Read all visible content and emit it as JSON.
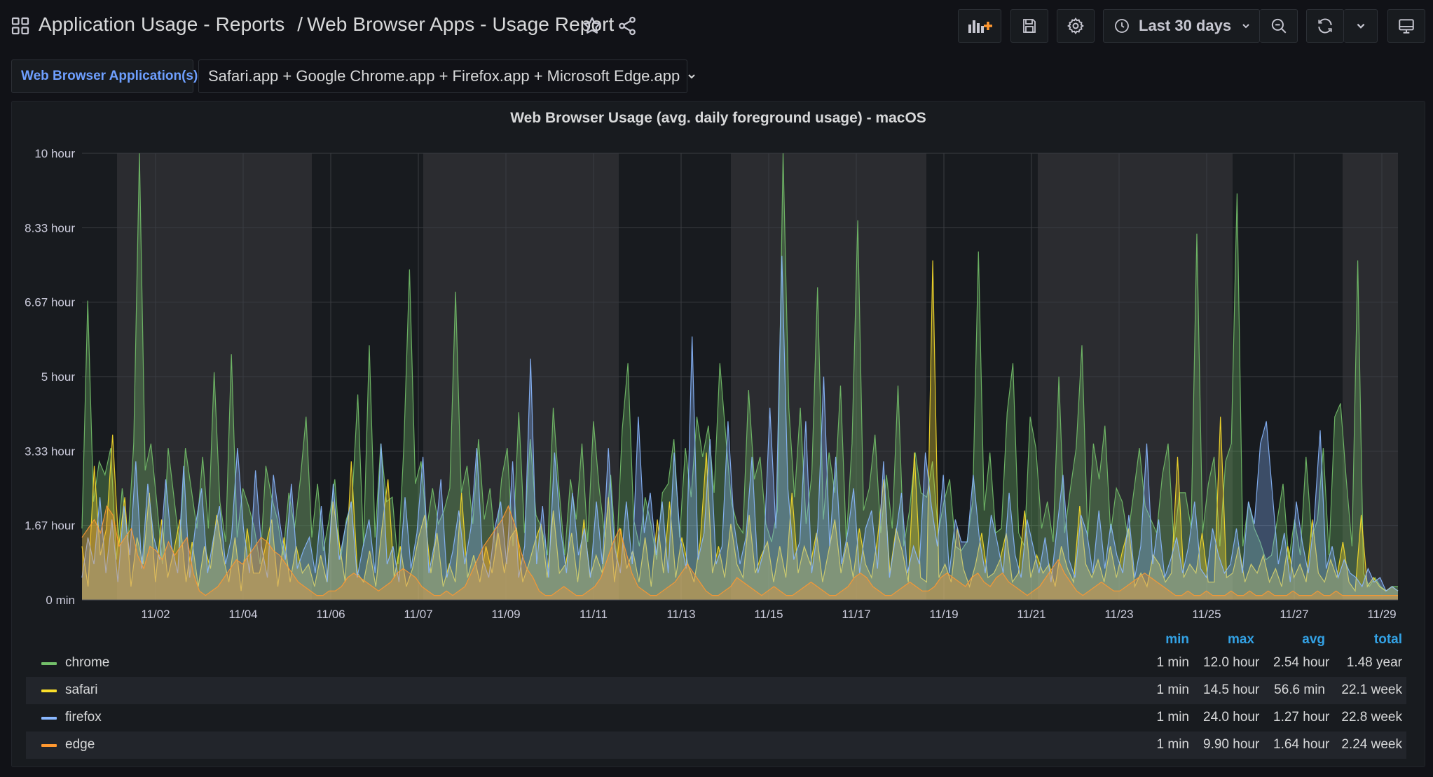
{
  "header": {
    "breadcrumb_folder": "Application Usage - Reports",
    "breadcrumb_separator": "/",
    "breadcrumb_dashboard": "Web Browser Apps - Usage Report",
    "time_range": "Last 30 days",
    "icons": [
      "apps-icon",
      "star-icon",
      "share-icon",
      "add-panel-icon",
      "save-icon",
      "settings-icon",
      "clock-icon",
      "chevron-down-icon",
      "zoom-out-icon",
      "refresh-icon",
      "chevron-down-icon",
      "tv-mode-icon"
    ]
  },
  "variables": {
    "label": "Web Browser Application(s):",
    "value": "Safari.app + Google Chrome.app + Firefox.app + Microsoft Edge.app"
  },
  "colors": {
    "chrome": "#73bf69",
    "safari": "#fade2a",
    "firefox": "#8ab8ff",
    "edge": "#ff9830",
    "accent": "#33a2e5",
    "background": "#111217",
    "panel": "#181b1f"
  },
  "chart_data": {
    "type": "area",
    "title": "Web Browser Usage (avg. daily foreground usage) - macOS",
    "y_unit": "hour",
    "ylim": [
      0,
      10
    ],
    "y_ticks": [
      "0 min",
      "1.67 hour",
      "3.33 hour",
      "5 hour",
      "6.67 hour",
      "8.33 hour",
      "10 hour"
    ],
    "x_ticks": [
      "11/02",
      "11/04",
      "11/06",
      "11/07",
      "11/09",
      "11/11",
      "11/13",
      "11/15",
      "11/17",
      "11/19",
      "11/21",
      "11/23",
      "11/25",
      "11/27",
      "11/29"
    ],
    "grid": true,
    "legend_placement": "bottom",
    "series": [
      {
        "name": "chrome",
        "color": "#73bf69",
        "values": [
          1.6,
          6.7,
          2.2,
          3.1,
          2.8,
          3.4,
          0.9,
          2.5,
          1.3,
          3.5,
          10.0,
          2.9,
          3.5,
          2.2,
          0.8,
          3.4,
          2.3,
          1.2,
          3.4,
          2.5,
          1.6,
          3.2,
          1.6,
          5.1,
          2.2,
          1.3,
          5.5,
          1.4,
          2.5,
          2.1,
          1.6,
          0.8,
          3.0,
          2.3,
          1.8,
          1.0,
          2.4,
          1.6,
          2.7,
          4.1,
          1.4,
          2.6,
          1.1,
          1.8,
          2.7,
          0.9,
          1.8,
          2.2,
          4.6,
          1.2,
          5.7,
          1.4,
          3.5,
          2.2,
          2.3,
          0.8,
          3.4,
          7.4,
          2.6,
          3.1,
          1.6,
          2.5,
          1.7,
          2.0,
          2.5,
          6.9,
          2.4,
          3.0,
          1.7,
          3.6,
          1.8,
          2.5,
          1.1,
          2.7,
          3.4,
          1.2,
          4.2,
          1.5,
          3.6,
          1.9,
          1.6,
          1.0,
          4.3,
          2.5,
          1.0,
          2.7,
          1.8,
          3.5,
          1.3,
          4.0,
          2.5,
          1.4,
          2.8,
          0.9,
          3.8,
          5.3,
          1.8,
          1.2,
          2.3,
          1.7,
          0.9,
          2.4,
          2.6,
          3.6,
          1.4,
          3.4,
          2.3,
          4.1,
          3.2,
          3.9,
          2.4,
          5.3,
          3.7,
          2.2,
          1.7,
          1.5,
          4.7,
          2.7,
          3.2,
          1.7,
          1.3,
          2.0,
          10.0,
          4.3,
          2.3,
          4.3,
          1.7,
          2.8,
          7.0,
          1.8,
          3.3,
          2.4,
          4.8,
          1.3,
          3.5,
          8.5,
          2.0,
          2.5,
          3.7,
          1.5,
          2.8,
          1.6,
          4.8,
          1.2,
          2.0,
          3.3,
          2.4,
          2.3,
          3.1,
          1.5,
          2.2,
          2.7,
          1.2,
          1.1,
          1.3,
          2.2,
          7.8,
          2.0,
          3.3,
          1.5,
          1.6,
          4.2,
          5.3,
          1.5,
          1.2,
          4.1,
          3.4,
          1.6,
          2.2,
          1.3,
          5.0,
          1.5,
          2.5,
          3.4,
          5.7,
          1.4,
          3.5,
          2.7,
          3.9,
          1.5,
          2.5,
          2.2,
          1.4,
          2.4,
          3.4,
          2.1,
          1.8,
          1.5,
          2.8,
          3.5,
          1.3,
          2.4,
          2.4,
          1.6,
          8.2,
          1.5,
          2.6,
          3.2,
          1.2,
          3.1,
          3.5,
          9.1,
          1.2,
          2.2,
          1.6,
          1.3,
          0.9,
          1.0,
          1.8,
          2.6,
          0.9,
          1.8,
          1.0,
          3.2,
          1.4,
          1.8,
          3.4,
          1.0,
          4.1,
          4.4,
          2.7,
          1.2,
          7.6,
          0.6,
          0.3,
          0.5,
          0.3,
          0.2,
          0.3,
          0.3
        ]
      },
      {
        "name": "safari",
        "color": "#fade2a",
        "values": [
          1.2,
          0.3,
          3.0,
          1.0,
          1.6,
          3.7,
          1.2,
          2.3,
          0.3,
          1.4,
          0.8,
          2.4,
          0.4,
          1.8,
          0.5,
          1.1,
          1.8,
          0.4,
          1.3,
          0.3,
          1.2,
          0.7,
          1.9,
          1.0,
          0.4,
          1.4,
          0.2,
          1.6,
          0.6,
          0.6,
          1.2,
          1.8,
          0.3,
          1.4,
          0.4,
          1.2,
          0.6,
          0.8,
          0.3,
          1.0,
          0.4,
          2.2,
          1.3,
          0.4,
          3.1,
          0.6,
          0.4,
          1.1,
          0.3,
          1.6,
          2.7,
          0.5,
          1.2,
          0.3,
          0.7,
          1.4,
          1.9,
          0.6,
          1.5,
          0.3,
          0.8,
          0.4,
          2.4,
          0.5,
          1.0,
          0.4,
          1.2,
          0.6,
          1.5,
          0.6,
          1.4,
          1.6,
          0.4,
          0.8,
          1.3,
          1.7,
          0.5,
          2.0,
          0.6,
          0.8,
          1.5,
          0.4,
          1.8,
          0.5,
          1.0,
          0.6,
          2.3,
          0.4,
          1.6,
          0.7,
          1.1,
          0.4,
          1.4,
          0.3,
          1.8,
          0.6,
          2.2,
          0.5,
          1.4,
          0.8,
          0.4,
          1.3,
          3.3,
          0.6,
          1.2,
          0.5,
          1.7,
          0.8,
          0.5,
          1.9,
          0.6,
          1.0,
          1.3,
          0.4,
          1.2,
          0.5,
          2.4,
          0.6,
          1.2,
          0.8,
          1.5,
          0.4,
          1.1,
          1.8,
          0.6,
          1.3,
          0.5,
          1.6,
          0.8,
          0.5,
          1.4,
          2.7,
          0.6,
          1.6,
          1.1,
          0.4,
          3.3,
          0.5,
          0.4,
          7.6,
          0.5,
          0.8,
          0.4,
          1.6,
          0.7,
          0.3,
          0.8,
          1.5,
          0.5,
          0.6,
          0.9,
          1.5,
          0.4,
          0.6,
          2.0,
          0.5,
          1.0,
          0.6,
          0.8,
          0.3,
          1.2,
          0.7,
          0.4,
          2.1,
          0.8,
          0.5,
          0.9,
          0.4,
          1.2,
          0.5,
          1.1,
          1.6,
          0.3,
          0.6,
          0.3,
          1.0,
          0.8,
          0.4,
          0.6,
          3.2,
          0.5,
          0.8,
          0.6,
          1.5,
          0.4,
          0.4,
          4.1,
          0.5,
          0.6,
          1.2,
          0.4,
          0.8,
          0.6,
          1.0,
          0.4,
          0.7,
          0.3,
          1.2,
          0.5,
          0.8,
          0.4,
          1.8,
          0.6,
          0.4,
          0.9,
          0.5,
          1.3,
          0.4,
          0.2,
          1.9,
          0.3,
          0.5,
          0.3,
          0.2,
          0.3,
          0.2
        ]
      },
      {
        "name": "firefox",
        "color": "#8ab8ff",
        "values": [
          0.5,
          1.4,
          0.8,
          2.3,
          0.6,
          1.8,
          0.4,
          2.1,
          1.0,
          3.1,
          0.7,
          2.6,
          1.4,
          0.9,
          2.7,
          1.2,
          0.6,
          3.0,
          0.5,
          1.7,
          2.5,
          0.6,
          1.4,
          2.1,
          0.8,
          1.4,
          3.4,
          1.6,
          0.6,
          2.9,
          1.2,
          0.5,
          2.8,
          1.8,
          0.9,
          2.6,
          0.7,
          1.1,
          1.4,
          0.6,
          2.1,
          0.4,
          2.6,
          0.9,
          1.6,
          2.2,
          0.5,
          1.2,
          1.8,
          0.6,
          3.5,
          0.8,
          1.2,
          0.4,
          2.3,
          0.7,
          1.5,
          3.2,
          0.6,
          1.3,
          2.7,
          0.5,
          1.1,
          2.0,
          0.8,
          1.6,
          3.4,
          0.9,
          0.5,
          1.6,
          2.2,
          0.8,
          3.1,
          0.5,
          1.2,
          5.4,
          0.8,
          2.1,
          0.5,
          3.3,
          1.6,
          0.6,
          2.4,
          1.0,
          1.6,
          0.5,
          2.2,
          0.8,
          3.4,
          1.2,
          0.6,
          2.2,
          0.8,
          4.1,
          1.5,
          2.4,
          1.0,
          2.2,
          0.6,
          3.3,
          1.4,
          0.7,
          5.9,
          0.9,
          1.5,
          3.6,
          0.8,
          1.2,
          4.0,
          1.7,
          0.8,
          1.4,
          3.2,
          0.6,
          1.1,
          4.3,
          1.6,
          7.7,
          2.5,
          0.9,
          1.3,
          4.0,
          0.6,
          1.6,
          5.0,
          1.2,
          3.2,
          0.8,
          1.5,
          2.5,
          0.6,
          1.6,
          2.0,
          0.7,
          3.1,
          0.5,
          1.4,
          2.4,
          0.6,
          1.2,
          0.8,
          3.3,
          2.1,
          1.2,
          2.8,
          0.6,
          1.8,
          1.3,
          1.3,
          2.8,
          1.4,
          0.6,
          1.9,
          1.3,
          0.6,
          2.4,
          1.0,
          0.5,
          1.8,
          1.2,
          0.6,
          1.4,
          0.4,
          1.6,
          2.8,
          0.9,
          0.5,
          1.9,
          1.5,
          0.6,
          2.0,
          0.7,
          1.7,
          1.0,
          0.6,
          1.9,
          0.5,
          1.2,
          3.5,
          0.8,
          1.8,
          0.5,
          0.9,
          1.4,
          0.6,
          1.2,
          2.2,
          0.7,
          0.5,
          1.6,
          1.0,
          0.6,
          0.8,
          1.6,
          0.6,
          2.2,
          1.7,
          3.5,
          4.0,
          2.4,
          0.8,
          1.5,
          0.4,
          2.2,
          1.3,
          0.6,
          1.8,
          3.8,
          0.7,
          1.2,
          0.5,
          0.9,
          0.6,
          0.5,
          0.3,
          0.7,
          0.4,
          0.5,
          0.2,
          0.3,
          0.2
        ]
      },
      {
        "name": "edge",
        "color": "#ff9830",
        "values": [
          1.4,
          1.6,
          1.8,
          1.5,
          2.1,
          1.9,
          1.2,
          1.4,
          1.6,
          1.0,
          0.7,
          1.2,
          1.1,
          0.9,
          1.3,
          1.0,
          1.2,
          1.4,
          0.6,
          0.2,
          0.1,
          0.2,
          0.3,
          0.5,
          0.7,
          0.9,
          0.8,
          1.0,
          1.2,
          1.4,
          1.3,
          1.1,
          1.0,
          0.8,
          0.6,
          0.4,
          0.3,
          0.2,
          0.1,
          0.1,
          0.2,
          0.2,
          0.3,
          0.5,
          0.6,
          0.5,
          0.4,
          0.3,
          0.2,
          0.3,
          0.4,
          0.6,
          0.7,
          0.6,
          0.5,
          0.3,
          0.2,
          0.1,
          0.1,
          0.2,
          0.1,
          0.2,
          0.3,
          0.6,
          0.9,
          1.2,
          1.4,
          1.6,
          1.8,
          2.1,
          1.7,
          1.1,
          0.7,
          0.5,
          0.2,
          0.1,
          0.1,
          0.2,
          0.3,
          0.2,
          0.1,
          0.1,
          0.2,
          0.3,
          0.5,
          0.9,
          1.3,
          1.6,
          1.1,
          0.6,
          0.3,
          0.2,
          0.1,
          0.1,
          0.2,
          0.3,
          0.4,
          0.6,
          0.8,
          0.6,
          0.4,
          0.2,
          0.1,
          0.1,
          0.2,
          0.3,
          0.5,
          0.4,
          0.3,
          0.2,
          0.1,
          0.2,
          0.3,
          0.2,
          0.1,
          0.1,
          0.2,
          0.3,
          0.4,
          0.3,
          0.2,
          0.1,
          0.1,
          0.2,
          0.3,
          0.5,
          0.6,
          0.5,
          0.3,
          0.2,
          0.1,
          0.1,
          0.2,
          0.3,
          0.4,
          0.3,
          0.2,
          0.2,
          0.3,
          0.5,
          0.6,
          0.5,
          0.4,
          0.3,
          0.5,
          0.6,
          0.4,
          0.3,
          0.5,
          0.6,
          0.4,
          0.3,
          0.2,
          0.1,
          0.2,
          0.3,
          0.5,
          0.7,
          0.9,
          0.6,
          0.4,
          0.2,
          0.1,
          0.2,
          0.3,
          0.4,
          0.3,
          0.2,
          0.2,
          0.3,
          0.4,
          0.5,
          0.6,
          0.5,
          0.4,
          0.3,
          0.2,
          0.1,
          0.1,
          0.2,
          0.1,
          0.1,
          0.2,
          0.1,
          0.1,
          0.1,
          0.2,
          0.1,
          0.1,
          0.2,
          0.1,
          0.1,
          0.2,
          0.1,
          0.1,
          0.1,
          0.2,
          0.1,
          0.1,
          0.1,
          0.2,
          0.1,
          0.1,
          0.2,
          0.1,
          0.1,
          0.1,
          0.1,
          0.1,
          0.1,
          0.1,
          0.1,
          0.1,
          0.1
        ]
      }
    ],
    "legend": {
      "columns": [
        "min",
        "max",
        "avg",
        "total"
      ],
      "rows": [
        {
          "name": "chrome",
          "min": "1 min",
          "max": "12.0 hour",
          "avg": "2.54 hour",
          "total": "1.48 year"
        },
        {
          "name": "safari",
          "min": "1 min",
          "max": "14.5 hour",
          "avg": "56.6 min",
          "total": "22.1 week"
        },
        {
          "name": "firefox",
          "min": "1 min",
          "max": "24.0 hour",
          "avg": "1.27 hour",
          "total": "22.8 week"
        },
        {
          "name": "edge",
          "min": "1 min",
          "max": "9.90 hour",
          "avg": "1.64 hour",
          "total": "2.24 week"
        }
      ]
    }
  }
}
